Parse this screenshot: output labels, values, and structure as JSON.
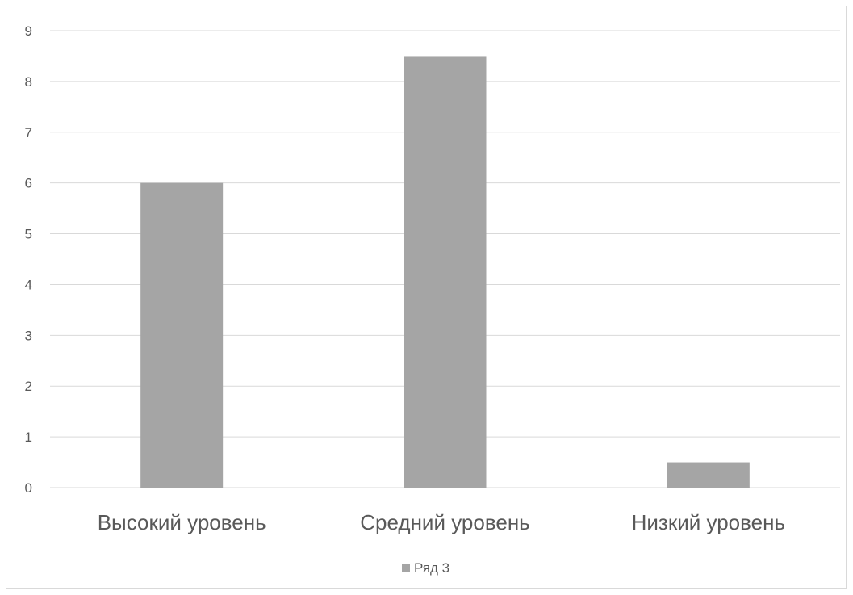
{
  "chart_data": {
    "type": "bar",
    "categories": [
      "Высокий уровень",
      "Средний уровень",
      "Низкий уровень"
    ],
    "series": [
      {
        "name": "Ряд 3",
        "values": [
          6,
          8.5,
          0.5
        ]
      }
    ],
    "title": "",
    "xlabel": "",
    "ylabel": "",
    "ylim": [
      0,
      9
    ],
    "yticks": [
      "0",
      "1",
      "2",
      "3",
      "4",
      "5",
      "6",
      "7",
      "8",
      "9"
    ],
    "grid": true,
    "legend_position": "bottom",
    "bar_color": "#a5a5a5",
    "grid_color": "#d9d9d9"
  }
}
